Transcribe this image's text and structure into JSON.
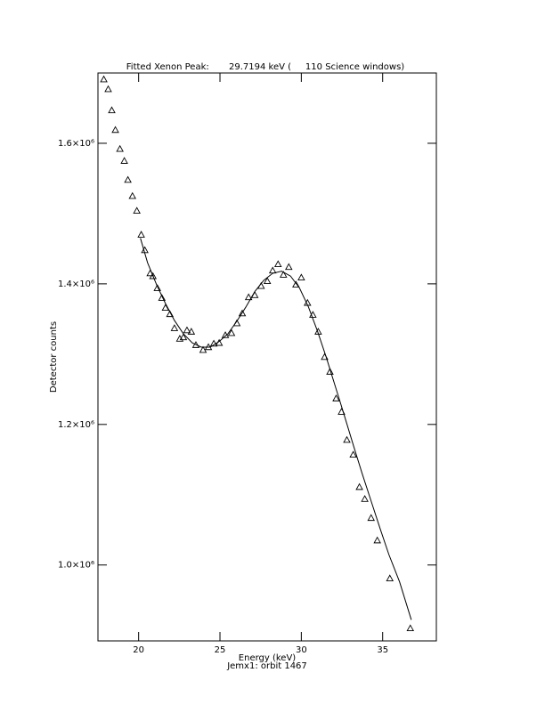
{
  "chart_data": {
    "type": "scatter",
    "title": "Fitted Xenon Peak:       29.7194 keV (     110 Science windows)",
    "x_label": "Energy (keV)",
    "subtitle": "Jemx1: orbit 1467",
    "y_label": "Detector counts",
    "xlim": [
      17.5,
      38.3
    ],
    "xticks": [
      20,
      25,
      30,
      35
    ],
    "ylim": [
      892000,
      1700000
    ],
    "yticks": [
      {
        "value": 1000000,
        "label": "1.0×10⁶"
      },
      {
        "value": 1200000,
        "label": "1.2×10⁶"
      },
      {
        "value": 1400000,
        "label": "1.4×10⁶"
      },
      {
        "value": 1600000,
        "label": "1.6×10⁶"
      }
    ],
    "series": [
      {
        "color": "#000000",
        "marker": "triangle",
        "x": [
          17.86,
          18.13,
          18.35,
          18.57,
          18.85,
          19.12,
          19.34,
          19.62,
          19.89,
          20.16,
          20.38,
          20.71,
          20.88,
          21.15,
          21.43,
          21.65,
          21.92,
          22.2,
          22.53,
          22.75,
          22.97,
          23.24,
          23.52,
          23.96,
          24.29,
          24.62,
          24.95,
          25.33,
          25.71,
          26.04,
          26.37,
          26.76,
          27.14,
          27.53,
          27.91,
          28.24,
          28.57,
          28.9,
          29.23,
          29.67,
          30.0,
          30.38,
          30.71,
          31.04,
          31.43,
          31.76,
          32.14,
          32.47,
          32.8,
          33.19,
          33.57,
          33.9,
          34.29,
          34.67,
          35.44,
          36.7
        ],
        "values": [
          1691000,
          1677000,
          1647000,
          1619000,
          1592000,
          1575000,
          1548000,
          1525000,
          1504000,
          1470000,
          1448000,
          1415000,
          1411000,
          1394000,
          1380000,
          1366000,
          1357000,
          1337000,
          1322000,
          1324000,
          1334000,
          1332000,
          1313000,
          1306000,
          1310000,
          1315000,
          1316000,
          1327000,
          1330000,
          1344000,
          1358000,
          1381000,
          1384000,
          1397000,
          1404000,
          1419000,
          1428000,
          1413000,
          1424000,
          1399000,
          1409000,
          1373000,
          1356000,
          1332000,
          1296000,
          1275000,
          1237000,
          1218000,
          1178000,
          1157000,
          1111000,
          1094000,
          1067000,
          1035000,
          981000,
          910000
        ]
      },
      {
        "color": "#000000",
        "marker": "line",
        "x": [
          20.11,
          20.55,
          21.1,
          21.65,
          22.2,
          22.75,
          23.3,
          23.85,
          24.4,
          24.95,
          25.49,
          26.04,
          26.59,
          27.14,
          27.69,
          28.24,
          28.79,
          29.34,
          29.89,
          30.44,
          30.99,
          31.54,
          32.09,
          32.64,
          33.19,
          33.74,
          34.29,
          34.84,
          35.38,
          36.04,
          36.76
        ],
        "values": [
          1465000,
          1430000,
          1399000,
          1372000,
          1348000,
          1329000,
          1316000,
          1310000,
          1310000,
          1318000,
          1329000,
          1347000,
          1367000,
          1389000,
          1405000,
          1415000,
          1418000,
          1411000,
          1394000,
          1367000,
          1333000,
          1295000,
          1254000,
          1213000,
          1171000,
          1130000,
          1091000,
          1052000,
          1015000,
          976000,
          922000
        ]
      }
    ]
  }
}
